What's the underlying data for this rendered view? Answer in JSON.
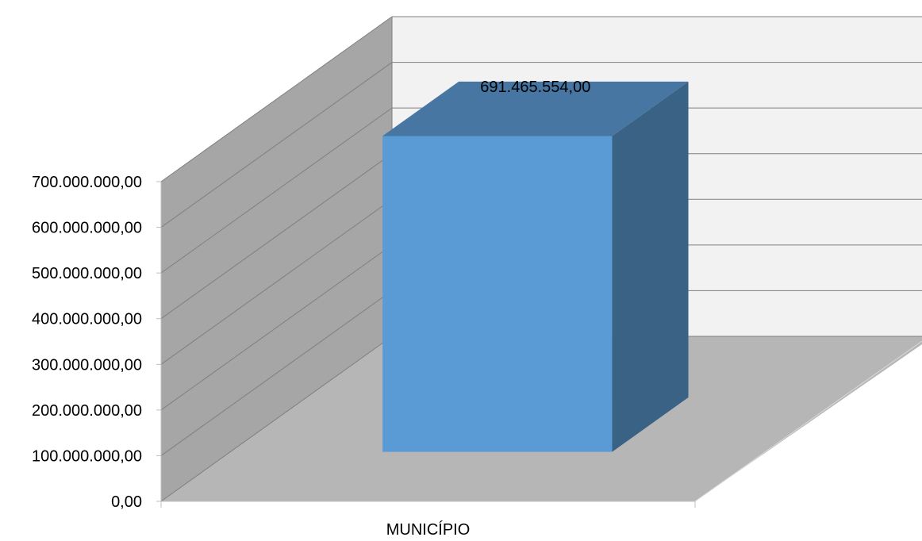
{
  "chart_data": {
    "type": "bar",
    "categories": [
      "MUNICÍPIO"
    ],
    "series": [
      {
        "values": [
          691465554.0
        ],
        "value_labels": [
          "691.465.554,00"
        ]
      }
    ],
    "ylim": [
      0,
      700000000
    ],
    "y_ticks": [
      0,
      100000000,
      200000000,
      300000000,
      400000000,
      500000000,
      600000000,
      700000000
    ],
    "y_tick_labels": [
      "0,00",
      "100.000.000,00",
      "200.000.000,00",
      "300.000.000,00",
      "400.000.000,00",
      "500.000.000,00",
      "600.000.000,00",
      "700.000.000,00"
    ],
    "grid": true,
    "style": "3d-column",
    "colors": {
      "bar_front": "#5b9bd5",
      "bar_top": "#4676a1",
      "bar_side": "#396285",
      "back_wall": "#f2f2f2",
      "side_wall": "#a6a6a6",
      "floor": "#b6b6b6",
      "gridline": "#7f7f7f"
    }
  }
}
